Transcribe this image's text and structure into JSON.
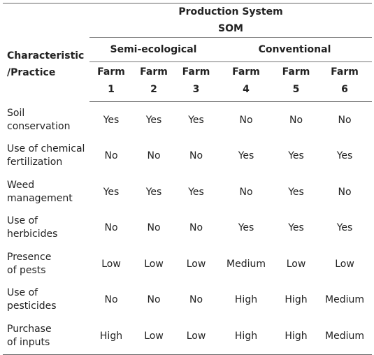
{
  "header": {
    "characteristic_label_line1": "Characteristic",
    "characteristic_label_line2": "/Practice",
    "production_system": "Production System",
    "som": "SOM",
    "group_semi": "Semi-ecological",
    "group_conv": "Conventional",
    "farm_word": "Farm",
    "farms": [
      "1",
      "2",
      "3",
      "4",
      "5",
      "6"
    ]
  },
  "rows": [
    {
      "label_line1": "Soil",
      "label_line2": "conservation",
      "values": [
        "Yes",
        "Yes",
        "Yes",
        "No",
        "No",
        "No"
      ]
    },
    {
      "label_line1": "Use of chemical",
      "label_line2": "fertilization",
      "values": [
        "No",
        "No",
        "No",
        "Yes",
        "Yes",
        "Yes"
      ]
    },
    {
      "label_line1": "Weed",
      "label_line2": "management",
      "values": [
        "Yes",
        "Yes",
        "Yes",
        "No",
        "Yes",
        "No"
      ]
    },
    {
      "label_line1": "Use of",
      "label_line2": "herbicides",
      "values": [
        "No",
        "No",
        "No",
        "Yes",
        "Yes",
        "Yes"
      ]
    },
    {
      "label_line1": "Presence",
      "label_line2": "of pests",
      "values": [
        "Low",
        "Low",
        "Low",
        "Medium",
        "Low",
        "Low"
      ]
    },
    {
      "label_line1": "Use of",
      "label_line2": "pesticides",
      "values": [
        "No",
        "No",
        "No",
        "High",
        "High",
        "Medium"
      ]
    },
    {
      "label_line1": "Purchase",
      "label_line2": "of inputs",
      "values": [
        "High",
        "Low",
        "Low",
        "High",
        "High",
        "Medium"
      ]
    }
  ]
}
